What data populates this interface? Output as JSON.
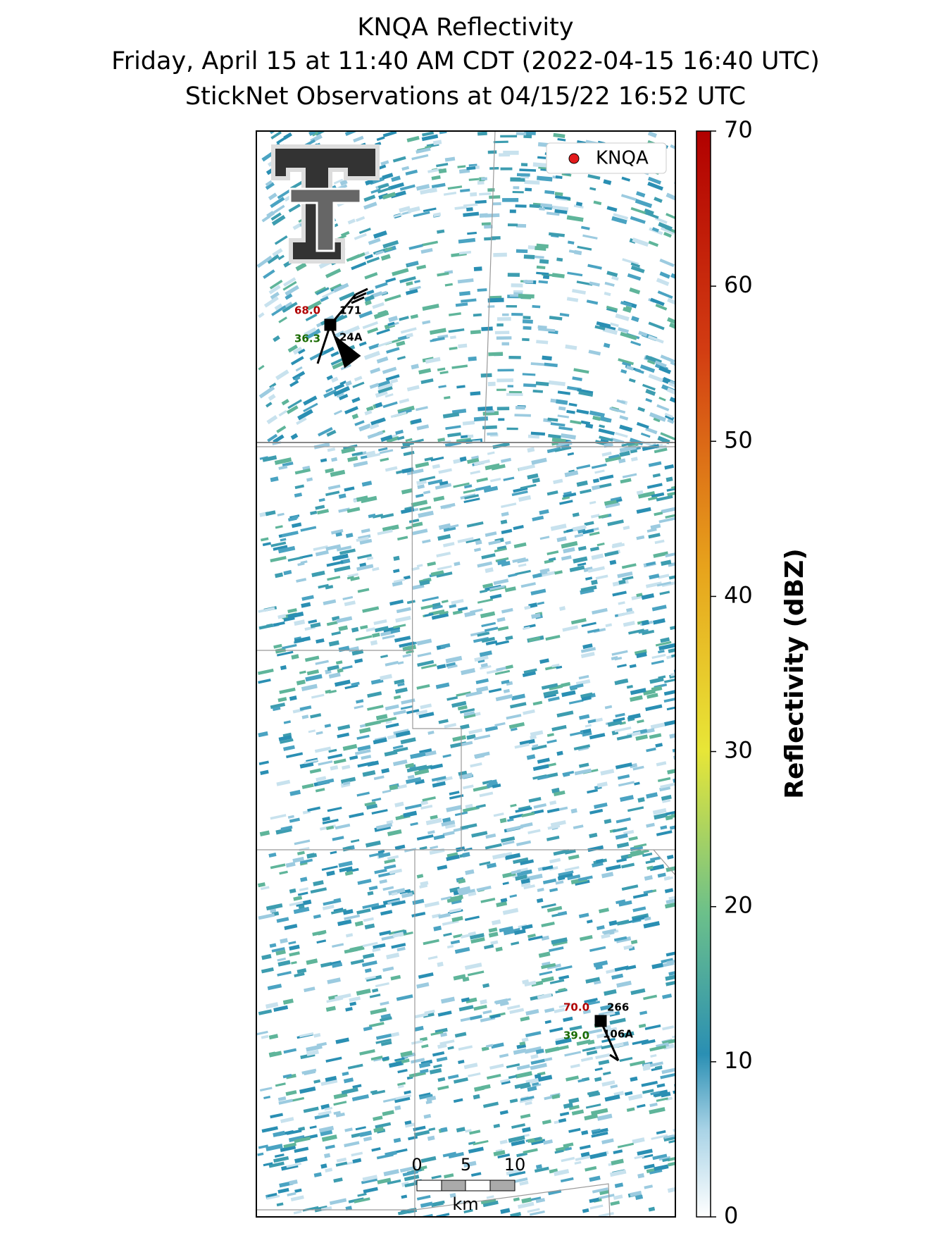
{
  "title": [
    "KNQA Reflectivity",
    "Friday, April 15 at 11:40 AM CDT (2022-04-15 16:40 UTC)",
    "StickNet Observations at 04/15/22 16:52 UTC"
  ],
  "legend": {
    "label": "KNQA",
    "color": "#e31a1c"
  },
  "colorbar": {
    "label": "Reflectivity (dBZ)",
    "lim": [
      0,
      70
    ],
    "ticks": [
      0,
      10,
      20,
      30,
      40,
      50,
      60,
      70
    ]
  },
  "stations": [
    {
      "temperature": "68.0",
      "direction": "171",
      "dewpoint": "36.3",
      "id": "24A"
    },
    {
      "temperature": "70.0",
      "direction": "266",
      "dewpoint": "39.0",
      "id": "106A"
    }
  ],
  "scalebar": {
    "ticks": [
      0,
      5,
      10
    ],
    "unit": "km"
  }
}
